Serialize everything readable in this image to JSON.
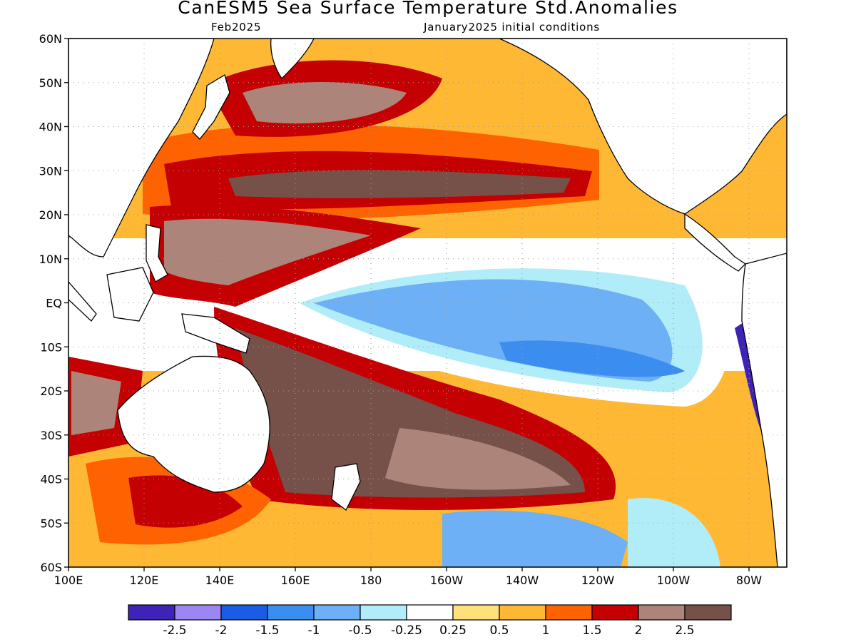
{
  "header": {
    "title": "CanESM5 Sea Surface Temperature Std.Anomalies",
    "valid_month": "Feb2025",
    "initial_conditions": "January2025 initial conditions"
  },
  "map": {
    "region": "Pacific Ocean",
    "lon_range": [
      100,
      290
    ],
    "lat_range": [
      -60,
      60
    ],
    "grid": true,
    "x_ticks": [
      {
        "lon": 100,
        "label": "100E"
      },
      {
        "lon": 120,
        "label": "120E"
      },
      {
        "lon": 140,
        "label": "140E"
      },
      {
        "lon": 160,
        "label": "160E"
      },
      {
        "lon": 180,
        "label": "180"
      },
      {
        "lon": 200,
        "label": "160W"
      },
      {
        "lon": 220,
        "label": "140W"
      },
      {
        "lon": 240,
        "label": "120W"
      },
      {
        "lon": 260,
        "label": "100W"
      },
      {
        "lon": 280,
        "label": "80W"
      }
    ],
    "y_ticks": [
      {
        "lat": 60,
        "label": "60N"
      },
      {
        "lat": 50,
        "label": "50N"
      },
      {
        "lat": 40,
        "label": "40N"
      },
      {
        "lat": 30,
        "label": "30N"
      },
      {
        "lat": 20,
        "label": "20N"
      },
      {
        "lat": 10,
        "label": "10N"
      },
      {
        "lat": 0,
        "label": "EQ"
      },
      {
        "lat": -10,
        "label": "10S"
      },
      {
        "lat": -20,
        "label": "20S"
      },
      {
        "lat": -30,
        "label": "30S"
      },
      {
        "lat": -40,
        "label": "40S"
      },
      {
        "lat": -50,
        "label": "50S"
      },
      {
        "lat": -60,
        "label": "60S"
      }
    ]
  },
  "colorbar": {
    "colors": [
      "#3f23b7",
      "#9b86f2",
      "#1a5de4",
      "#3b8eef",
      "#6db0f5",
      "#b0edf9",
      "#ffffff",
      "#ffe07a",
      "#ffb833",
      "#ff6200",
      "#c50003",
      "#ad8479",
      "#76514a"
    ],
    "labels": [
      "-2.5",
      "-2",
      "-1.5",
      "-1",
      "-0.5",
      "-0.25",
      "0.25",
      "0.5",
      "1",
      "1.5",
      "2",
      "2.5"
    ]
  }
}
